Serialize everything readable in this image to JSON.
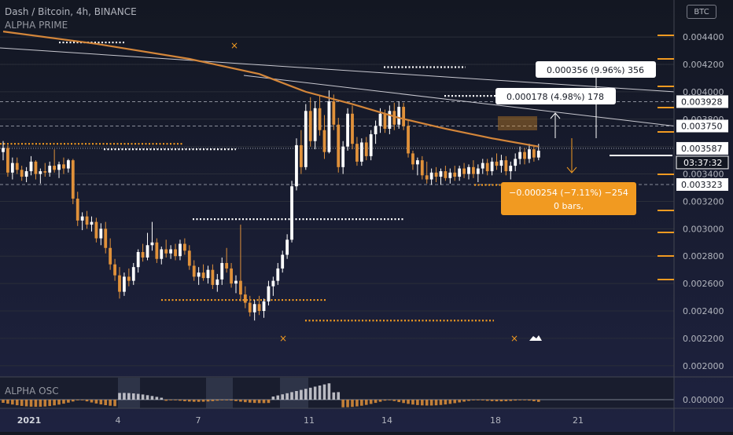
{
  "header": {
    "symbol_line": "Dash / Bitcoin, 4h, BINANCE",
    "indicator": "ALPHA PRIME",
    "osc_label": "ALPHA OSC",
    "currency": "BTC"
  },
  "colors": {
    "background": "#131722",
    "background_bottom": "#1e2240",
    "candle_up": "#ffffff",
    "candle_down": "#e0913a",
    "ma_line": "#d4863a",
    "accent_orange": "#f19a21",
    "trend_line": "#c8c8d0"
  },
  "chart_data": {
    "type": "candlestick",
    "symbol": "Dash / Bitcoin",
    "timeframe": "4h",
    "exchange": "BINANCE",
    "x_tick_labels": [
      "2021",
      "4",
      "7",
      "11",
      "14",
      "18",
      "21"
    ],
    "y_tick_labels": [
      "0.002000",
      "0.002200",
      "0.002400",
      "0.002600",
      "0.002800",
      "0.003000",
      "0.003200",
      "0.003400",
      "0.003600",
      "0.003800",
      "0.004000",
      "0.004200",
      "0.004400"
    ],
    "y_range": [
      0.00193,
      0.00467
    ],
    "price_levels": [
      {
        "value": "0.003928",
        "y": 0.003928
      },
      {
        "value": "0.003750",
        "y": 0.00375
      },
      {
        "value": "0.003587",
        "y": 0.003587
      },
      {
        "value": "0.003323",
        "y": 0.003323
      }
    ],
    "countdown": "03:37:32",
    "candles": [
      [
        0,
        0.00356,
        0.00364,
        0.0035,
        0.00359
      ],
      [
        1,
        0.00359,
        0.00361,
        0.00338,
        0.00341
      ],
      [
        2,
        0.00341,
        0.00352,
        0.00336,
        0.00348
      ],
      [
        3,
        0.00348,
        0.00352,
        0.0034,
        0.00343
      ],
      [
        4,
        0.00343,
        0.00346,
        0.00335,
        0.00338
      ],
      [
        5,
        0.00338,
        0.00345,
        0.00334,
        0.00342
      ],
      [
        6,
        0.00342,
        0.00353,
        0.00339,
        0.00349
      ],
      [
        7,
        0.00349,
        0.0035,
        0.00336,
        0.0034
      ],
      [
        8,
        0.0034,
        0.00344,
        0.00333,
        0.00342
      ],
      [
        9,
        0.00342,
        0.00348,
        0.00338,
        0.00341
      ],
      [
        10,
        0.00341,
        0.00349,
        0.00338,
        0.00346
      ],
      [
        11,
        0.00346,
        0.00358,
        0.00341,
        0.00343
      ],
      [
        12,
        0.00343,
        0.00349,
        0.00337,
        0.00347
      ],
      [
        13,
        0.00347,
        0.00352,
        0.0034,
        0.00344
      ],
      [
        14,
        0.00344,
        0.00351,
        0.00341,
        0.0035
      ],
      [
        15,
        0.0035,
        0.00351,
        0.00318,
        0.00322
      ],
      [
        16,
        0.00322,
        0.00327,
        0.00302,
        0.00306
      ],
      [
        17,
        0.00306,
        0.00312,
        0.00299,
        0.00309
      ],
      [
        18,
        0.00309,
        0.00313,
        0.003,
        0.00303
      ],
      [
        19,
        0.00303,
        0.00309,
        0.00298,
        0.00305
      ],
      [
        20,
        0.00305,
        0.00308,
        0.0029,
        0.00293
      ],
      [
        21,
        0.00293,
        0.00304,
        0.00288,
        0.003
      ],
      [
        22,
        0.003,
        0.00305,
        0.00282,
        0.00286
      ],
      [
        23,
        0.00286,
        0.00293,
        0.0027,
        0.00274
      ],
      [
        24,
        0.00274,
        0.00278,
        0.00262,
        0.00266
      ],
      [
        25,
        0.00266,
        0.00272,
        0.00249,
        0.00254
      ],
      [
        26,
        0.00254,
        0.00268,
        0.00251,
        0.00265
      ],
      [
        27,
        0.00265,
        0.00271,
        0.00258,
        0.00262
      ],
      [
        28,
        0.00262,
        0.00275,
        0.00259,
        0.00272
      ],
      [
        29,
        0.00272,
        0.00285,
        0.00268,
        0.00283
      ],
      [
        30,
        0.00283,
        0.00289,
        0.00276,
        0.00279
      ],
      [
        31,
        0.00279,
        0.00297,
        0.00277,
        0.00288
      ],
      [
        32,
        0.00288,
        0.00305,
        0.00284,
        0.0029
      ],
      [
        33,
        0.0029,
        0.00293,
        0.00275,
        0.00278
      ],
      [
        34,
        0.00278,
        0.00287,
        0.00274,
        0.00285
      ],
      [
        35,
        0.00285,
        0.00292,
        0.00279,
        0.00282
      ],
      [
        36,
        0.00282,
        0.00288,
        0.00278,
        0.00285
      ],
      [
        37,
        0.00285,
        0.00289,
        0.00277,
        0.0028
      ],
      [
        38,
        0.0028,
        0.00292,
        0.00277,
        0.00289
      ],
      [
        39,
        0.00289,
        0.00293,
        0.00281,
        0.00284
      ],
      [
        40,
        0.00284,
        0.00288,
        0.0027,
        0.00273
      ],
      [
        41,
        0.00273,
        0.00277,
        0.00262,
        0.00265
      ],
      [
        42,
        0.00265,
        0.00272,
        0.00259,
        0.00268
      ],
      [
        43,
        0.00268,
        0.00274,
        0.00262,
        0.00264
      ],
      [
        44,
        0.00264,
        0.00273,
        0.0026,
        0.0027
      ],
      [
        45,
        0.0027,
        0.00274,
        0.00256,
        0.00259
      ],
      [
        46,
        0.00259,
        0.00267,
        0.00254,
        0.00263
      ],
      [
        47,
        0.00263,
        0.00279,
        0.00259,
        0.00275
      ],
      [
        48,
        0.00275,
        0.00286,
        0.00268,
        0.00271
      ],
      [
        49,
        0.00271,
        0.00275,
        0.00257,
        0.0026
      ],
      [
        50,
        0.0026,
        0.00266,
        0.00253,
        0.00262
      ],
      [
        51,
        0.00262,
        0.00303,
        0.00247,
        0.00252
      ],
      [
        52,
        0.00252,
        0.00258,
        0.00242,
        0.00246
      ],
      [
        53,
        0.00246,
        0.00251,
        0.00236,
        0.00239
      ],
      [
        54,
        0.00239,
        0.00248,
        0.00233,
        0.00245
      ],
      [
        55,
        0.00245,
        0.00251,
        0.00237,
        0.0024
      ],
      [
        56,
        0.0024,
        0.00249,
        0.00235,
        0.00247
      ],
      [
        57,
        0.00247,
        0.00262,
        0.00244,
        0.00258
      ],
      [
        58,
        0.00258,
        0.00265,
        0.00251,
        0.00262
      ],
      [
        59,
        0.00262,
        0.00275,
        0.00259,
        0.00271
      ],
      [
        60,
        0.00271,
        0.00284,
        0.00268,
        0.00281
      ],
      [
        61,
        0.00281,
        0.00296,
        0.00278,
        0.00292
      ],
      [
        62,
        0.00292,
        0.00335,
        0.0029,
        0.00331
      ],
      [
        63,
        0.00331,
        0.00366,
        0.00328,
        0.00361
      ],
      [
        64,
        0.00361,
        0.00372,
        0.0034,
        0.00345
      ],
      [
        65,
        0.00345,
        0.00391,
        0.00343,
        0.00386
      ],
      [
        66,
        0.00386,
        0.00396,
        0.0036,
        0.00364
      ],
      [
        67,
        0.00364,
        0.00393,
        0.00358,
        0.00388
      ],
      [
        68,
        0.00388,
        0.00397,
        0.00368,
        0.00372
      ],
      [
        69,
        0.00372,
        0.00383,
        0.00351,
        0.00356
      ],
      [
        70,
        0.00356,
        0.00401,
        0.00355,
        0.00393
      ],
      [
        71,
        0.00393,
        0.00398,
        0.00372,
        0.00376
      ],
      [
        72,
        0.00376,
        0.00381,
        0.00341,
        0.00345
      ],
      [
        73,
        0.00345,
        0.00364,
        0.0034,
        0.0036
      ],
      [
        74,
        0.0036,
        0.00388,
        0.00357,
        0.00384
      ],
      [
        75,
        0.00384,
        0.0039,
        0.00358,
        0.00362
      ],
      [
        76,
        0.00362,
        0.00367,
        0.00346,
        0.00349
      ],
      [
        77,
        0.00349,
        0.00366,
        0.00346,
        0.00363
      ],
      [
        78,
        0.00363,
        0.00367,
        0.0035,
        0.00353
      ],
      [
        79,
        0.00353,
        0.00372,
        0.0035,
        0.00369
      ],
      [
        80,
        0.00369,
        0.00379,
        0.00362,
        0.00375
      ],
      [
        81,
        0.00375,
        0.00388,
        0.0037,
        0.00384
      ],
      [
        82,
        0.00384,
        0.00387,
        0.0037,
        0.00373
      ],
      [
        83,
        0.00373,
        0.0039,
        0.00369,
        0.00386
      ],
      [
        84,
        0.00386,
        0.00392,
        0.00372,
        0.00376
      ],
      [
        85,
        0.00376,
        0.00393,
        0.00373,
        0.00389
      ],
      [
        86,
        0.00389,
        0.00392,
        0.00372,
        0.00375
      ],
      [
        87,
        0.00375,
        0.00379,
        0.00352,
        0.00355
      ],
      [
        88,
        0.00355,
        0.00357,
        0.00343,
        0.00347
      ],
      [
        89,
        0.00347,
        0.00352,
        0.00339,
        0.0035
      ],
      [
        90,
        0.0035,
        0.00353,
        0.00336,
        0.00339
      ],
      [
        91,
        0.00339,
        0.00349,
        0.00333,
        0.00336
      ],
      [
        92,
        0.00336,
        0.00344,
        0.00332,
        0.00341
      ],
      [
        93,
        0.00341,
        0.00345,
        0.00334,
        0.00338
      ],
      [
        94,
        0.00338,
        0.00344,
        0.00332,
        0.00342
      ],
      [
        95,
        0.00342,
        0.00346,
        0.00335,
        0.00337
      ],
      [
        96,
        0.00337,
        0.00344,
        0.00333,
        0.00341
      ],
      [
        97,
        0.00341,
        0.00346,
        0.00335,
        0.00338
      ],
      [
        98,
        0.00338,
        0.00346,
        0.00335,
        0.00344
      ],
      [
        99,
        0.00344,
        0.00348,
        0.00337,
        0.0034
      ],
      [
        100,
        0.0034,
        0.00347,
        0.00336,
        0.00345
      ],
      [
        101,
        0.00345,
        0.0035,
        0.00337,
        0.0034
      ],
      [
        102,
        0.0034,
        0.00347,
        0.00334,
        0.00344
      ],
      [
        103,
        0.00344,
        0.00351,
        0.0034,
        0.00348
      ],
      [
        104,
        0.00348,
        0.00351,
        0.00339,
        0.00342
      ],
      [
        105,
        0.00342,
        0.00352,
        0.00339,
        0.00349
      ],
      [
        106,
        0.00349,
        0.00355,
        0.00343,
        0.00346
      ],
      [
        107,
        0.00346,
        0.00354,
        0.00341,
        0.0035
      ],
      [
        108,
        0.0035,
        0.00353,
        0.00339,
        0.00342
      ],
      [
        109,
        0.00342,
        0.00349,
        0.00336,
        0.00346
      ],
      [
        110,
        0.00346,
        0.00355,
        0.00342,
        0.00351
      ],
      [
        111,
        0.00351,
        0.0036,
        0.00347,
        0.00356
      ],
      [
        112,
        0.00356,
        0.00359,
        0.00347,
        0.00351
      ],
      [
        113,
        0.00351,
        0.00362,
        0.00348,
        0.00358
      ],
      [
        114,
        0.00358,
        0.00361,
        0.00349,
        0.00352
      ],
      [
        115,
        0.00352,
        0.00362,
        0.0035,
        0.00357
      ]
    ],
    "moving_average": [
      {
        "x": 0,
        "y": 0.00444
      },
      {
        "x": 20,
        "y": 0.00435
      },
      {
        "x": 40,
        "y": 0.00424
      },
      {
        "x": 55,
        "y": 0.00413
      },
      {
        "x": 65,
        "y": 0.004
      },
      {
        "x": 75,
        "y": 0.00391
      },
      {
        "x": 85,
        "y": 0.00381
      },
      {
        "x": 95,
        "y": 0.00373
      },
      {
        "x": 105,
        "y": 0.00366
      },
      {
        "x": 115,
        "y": 0.0036
      }
    ],
    "measurements": [
      {
        "text": "0.000356 (9.96%) 356",
        "style": "light"
      },
      {
        "text": "0.000178 (4.98%) 178",
        "style": "light"
      },
      {
        "line1": "−0.000254 (−7.11%) −254",
        "line2": "0 bars,",
        "style": "orange"
      }
    ]
  }
}
